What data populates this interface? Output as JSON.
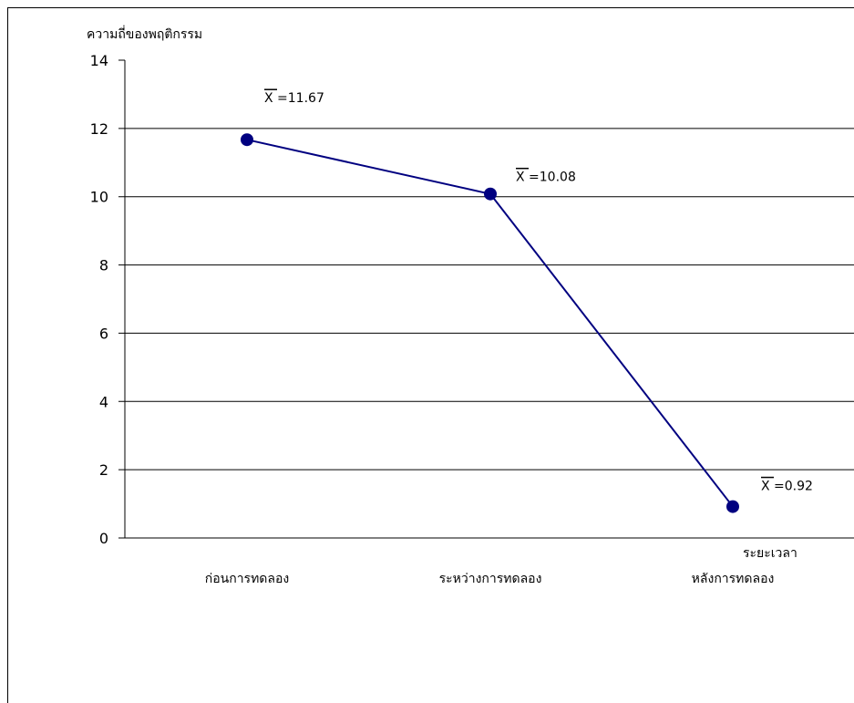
{
  "chart_data": {
    "type": "line",
    "title": "",
    "ylabel": "ความถี่ของพฤติกรรม",
    "xlabel": "ระยะเวลา",
    "ylim": [
      0,
      14
    ],
    "yticks": [
      0,
      2,
      4,
      6,
      8,
      10,
      12,
      14
    ],
    "grid": true,
    "categories": [
      "ก่อนการทดลอง",
      "ระหว่างการทดลอง",
      "หลังการทดลอง"
    ],
    "series": [
      {
        "values": [
          11.67,
          10.08,
          0.92
        ],
        "color": "#000080",
        "annotations": [
          "X =11.67",
          "X =10.08",
          "X =0.92"
        ]
      }
    ]
  }
}
